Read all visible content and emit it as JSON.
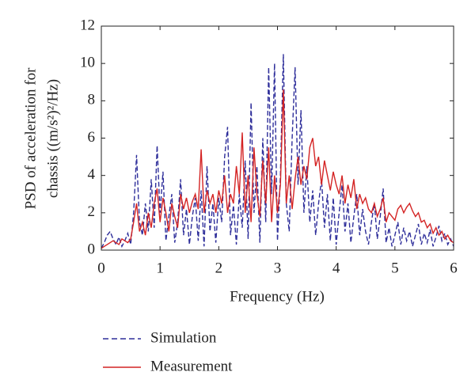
{
  "chart_data": {
    "type": "line",
    "xlabel": "Frequency (Hz)",
    "ylabel": [
      "PSD of acceleration for",
      "chassis ((m/s²)²/Hz)"
    ],
    "x": [
      0,
      0.05,
      0.1,
      0.15,
      0.2,
      0.25,
      0.3,
      0.35,
      0.4,
      0.45,
      0.5,
      0.55,
      0.6,
      0.65,
      0.7,
      0.75,
      0.8,
      0.85,
      0.9,
      0.95,
      1,
      1.05,
      1.1,
      1.15,
      1.2,
      1.25,
      1.3,
      1.35,
      1.4,
      1.45,
      1.5,
      1.55,
      1.6,
      1.65,
      1.7,
      1.75,
      1.8,
      1.85,
      1.9,
      1.95,
      2,
      2.05,
      2.1,
      2.15,
      2.2,
      2.25,
      2.3,
      2.35,
      2.4,
      2.45,
      2.5,
      2.55,
      2.6,
      2.65,
      2.7,
      2.75,
      2.8,
      2.85,
      2.9,
      2.95,
      3,
      3.05,
      3.1,
      3.15,
      3.2,
      3.25,
      3.3,
      3.35,
      3.4,
      3.45,
      3.5,
      3.55,
      3.6,
      3.65,
      3.7,
      3.75,
      3.8,
      3.85,
      3.9,
      3.95,
      4,
      4.05,
      4.1,
      4.15,
      4.2,
      4.25,
      4.3,
      4.35,
      4.4,
      4.45,
      4.5,
      4.55,
      4.6,
      4.65,
      4.7,
      4.75,
      4.8,
      4.85,
      4.9,
      4.95,
      5,
      5.05,
      5.1,
      5.15,
      5.2,
      5.25,
      5.3,
      5.35,
      5.4,
      5.45,
      5.5,
      5.55,
      5.6,
      5.65,
      5.7,
      5.75,
      5.8,
      5.85,
      5.9,
      5.95,
      6
    ],
    "series": [
      {
        "name": "Simulation",
        "color": "#2e2e9a",
        "dash": true,
        "values": [
          0.1,
          0.4,
          0.8,
          1.0,
          0.6,
          0.3,
          0.7,
          0.2,
          0.5,
          0.9,
          0.3,
          2.0,
          5.1,
          1.5,
          0.8,
          2.5,
          1.0,
          3.8,
          1.2,
          5.6,
          2.0,
          4.2,
          0.5,
          1.8,
          3.0,
          0.4,
          1.5,
          3.8,
          0.8,
          2.2,
          0.3,
          1.8,
          2.8,
          0.5,
          3.2,
          0.2,
          4.5,
          1.0,
          2.5,
          0.4,
          2.8,
          1.5,
          5.0,
          6.6,
          0.8,
          2.4,
          0.3,
          3.0,
          1.2,
          4.8,
          0.6,
          7.9,
          2.0,
          4.5,
          0.4,
          6.0,
          1.5,
          9.8,
          3.0,
          10.0,
          0.5,
          4.0,
          10.5,
          2.5,
          1.0,
          6.0,
          9.8,
          3.5,
          7.5,
          2.0,
          4.5,
          1.5,
          3.2,
          0.8,
          2.5,
          3.8,
          1.2,
          3.0,
          0.5,
          2.8,
          0.3,
          2.0,
          3.5,
          1.0,
          2.5,
          0.4,
          1.8,
          3.0,
          0.8,
          2.2,
          1.0,
          0.3,
          1.5,
          2.5,
          0.6,
          1.8,
          3.3,
          0.4,
          1.2,
          0.2,
          0.8,
          1.5,
          0.3,
          1.2,
          0.5,
          1.0,
          0.2,
          0.8,
          1.4,
          0.3,
          0.9,
          0.4,
          1.1,
          0.2,
          0.7,
          1.3,
          0.5,
          0.9,
          0.3,
          0.6,
          0.2
        ]
      },
      {
        "name": "Measurement",
        "color": "#d42424",
        "dash": false,
        "values": [
          0.1,
          0.2,
          0.3,
          0.4,
          0.5,
          0.4,
          0.3,
          0.6,
          0.5,
          0.4,
          0.6,
          1.5,
          2.5,
          1.0,
          1.5,
          0.8,
          2.0,
          1.2,
          2.5,
          3.3,
          1.5,
          2.8,
          2.0,
          1.0,
          2.5,
          1.8,
          1.2,
          3.0,
          2.2,
          2.8,
          2.0,
          2.6,
          3.0,
          2.2,
          5.4,
          2.0,
          3.2,
          2.5,
          3.0,
          2.0,
          3.2,
          2.5,
          4.0,
          2.0,
          3.0,
          2.5,
          4.5,
          3.0,
          6.3,
          2.0,
          4.0,
          1.5,
          5.5,
          3.0,
          1.8,
          4.8,
          2.5,
          5.5,
          1.5,
          4.0,
          2.0,
          3.5,
          8.6,
          2.5,
          4.0,
          2.2,
          3.8,
          5.0,
          3.5,
          4.5,
          3.8,
          5.5,
          6.0,
          4.5,
          5.0,
          3.5,
          4.8,
          4.0,
          3.2,
          4.2,
          3.5,
          3.0,
          4.0,
          2.5,
          3.5,
          2.8,
          3.8,
          2.2,
          3.0,
          2.5,
          2.8,
          2.2,
          2.0,
          2.5,
          1.8,
          2.2,
          2.8,
          1.5,
          2.0,
          1.8,
          1.6,
          2.2,
          2.4,
          2.0,
          2.3,
          2.5,
          2.1,
          1.8,
          2.0,
          1.5,
          1.6,
          1.2,
          1.4,
          0.9,
          1.2,
          0.8,
          1.0,
          0.6,
          0.8,
          0.5,
          0.4
        ]
      }
    ],
    "xlim": [
      0,
      6
    ],
    "xticks": [
      0,
      1,
      2,
      3,
      4,
      5,
      6
    ],
    "ylim": [
      0,
      12
    ],
    "yticks": [
      0,
      2,
      4,
      6,
      8,
      10,
      12
    ],
    "grid": false
  }
}
